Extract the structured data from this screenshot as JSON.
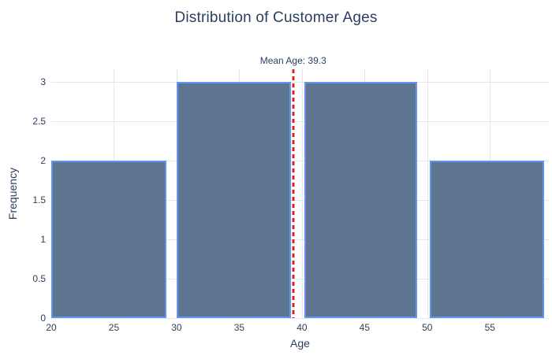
{
  "figure": {
    "title": "Distribution of Customer Ages",
    "x_axis_title": "Age",
    "y_axis_title": "Frequency",
    "annotation": "Mean Age: 39.3"
  },
  "chart_data": {
    "type": "histogram",
    "title": "Distribution of Customer Ages",
    "xlabel": "Age",
    "ylabel": "Frequency",
    "x_range": [
      20,
      59.7
    ],
    "y_range": [
      0,
      3.16
    ],
    "x_ticks": [
      20,
      25,
      30,
      35,
      40,
      45,
      50,
      55
    ],
    "y_ticks": [
      0,
      0.5,
      1,
      1.5,
      2,
      2.5,
      3
    ],
    "bins": [
      {
        "x0": 20.0,
        "x1": 29.2,
        "count": 2
      },
      {
        "x0": 30.0,
        "x1": 39.1,
        "count": 3
      },
      {
        "x0": 40.2,
        "x1": 49.2,
        "count": 3
      },
      {
        "x0": 50.2,
        "x1": 59.3,
        "count": 2
      }
    ],
    "mean_line": {
      "x": 39.3,
      "label": "Mean Age: 39.3",
      "style": "dashed"
    },
    "grid": true,
    "legend": false,
    "colors": {
      "bar_fill": "#5d7590",
      "bar_border": "#6495ed",
      "mean_line": "#e02020",
      "grid": "#e5e7eb",
      "text": "#2a3f5f",
      "background": "#ffffff"
    }
  }
}
